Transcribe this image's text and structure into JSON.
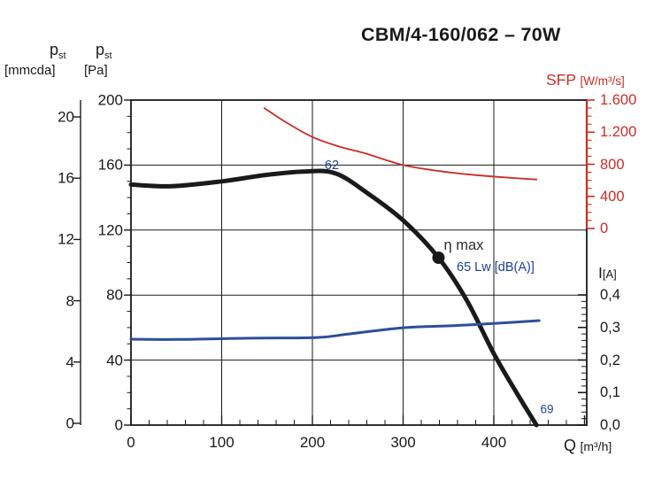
{
  "title": "CBM/4-160/062 – 70W",
  "colors": {
    "black": "#1a1a1a",
    "red": "#cc2c24",
    "blue_curve": "#2e4d9b",
    "blue_text": "#20409b"
  },
  "annotations": {
    "sound_mid": "62",
    "sound_legend": "65 Lw [dB(A)]",
    "sound_end": "69"
  },
  "chart_data": {
    "type": "line",
    "title": "CBM/4-160/062 – 70W",
    "grid": "on",
    "x_axis": {
      "name": "Q",
      "unit": "[m³/h]",
      "range": [
        0,
        500
      ],
      "major_step": 100,
      "minor_step": 20,
      "ticks": [
        {
          "v": 0,
          "label": "0"
        },
        {
          "v": 100,
          "label": "100"
        },
        {
          "v": 200,
          "label": "200"
        },
        {
          "v": 300,
          "label": "300"
        },
        {
          "v": 400,
          "label": "400"
        }
      ]
    },
    "y_axis_left_mmcda": {
      "symbol": "p",
      "sub": "st",
      "unit": "[mmcda]",
      "range": [
        0,
        20
      ],
      "ticks": [
        {
          "v": 20,
          "label": "20"
        },
        {
          "v": 16,
          "label": "16"
        },
        {
          "v": 12,
          "label": "12"
        },
        {
          "v": 8,
          "label": "8"
        },
        {
          "v": 4,
          "label": "4"
        },
        {
          "v": 0,
          "label": "0"
        }
      ]
    },
    "y_axis_left_pa": {
      "symbol": "p",
      "sub": "st",
      "unit": "[Pa]",
      "range": [
        0,
        200
      ],
      "minor_step": 10,
      "ticks": [
        {
          "v": 200,
          "label": "200"
        },
        {
          "v": 160,
          "label": "160"
        },
        {
          "v": 120,
          "label": "120"
        },
        {
          "v": 80,
          "label": "80"
        },
        {
          "v": 40,
          "label": "40"
        },
        {
          "v": 0,
          "label": "0"
        }
      ]
    },
    "y_axis_right_sfp": {
      "name": "SFP",
      "unit": "[W/m³/s]",
      "range": [
        0,
        1600
      ],
      "minor_step": 100,
      "ticks": [
        {
          "v": 1600,
          "label": "1.600"
        },
        {
          "v": 1200,
          "label": "1.200"
        },
        {
          "v": 800,
          "label": "800"
        },
        {
          "v": 400,
          "label": "400"
        },
        {
          "v": 0,
          "label": "0"
        }
      ]
    },
    "y_axis_right_current": {
      "name": "I",
      "unit": "[A]",
      "range": [
        0,
        0.4
      ],
      "minor_step": 0.02,
      "ticks": [
        {
          "v": 0.4,
          "label": "0,4"
        },
        {
          "v": 0.3,
          "label": "0,3"
        },
        {
          "v": 0.2,
          "label": "0,2"
        },
        {
          "v": 0.1,
          "label": "0,1"
        },
        {
          "v": 0,
          "label": "0,0"
        }
      ]
    },
    "series": [
      {
        "id": "pressure",
        "name": "Static pressure curve",
        "axis": "pa",
        "color": "#1a1a1a",
        "points": [
          [
            0,
            148
          ],
          [
            45,
            147
          ],
          [
            100,
            150
          ],
          [
            150,
            154
          ],
          [
            190,
            156
          ],
          [
            225,
            155
          ],
          [
            260,
            143
          ],
          [
            300,
            126
          ],
          [
            339,
            103
          ],
          [
            370,
            77
          ],
          [
            400,
            44
          ],
          [
            425,
            20
          ],
          [
            447,
            0
          ]
        ]
      },
      {
        "id": "sfp",
        "name": "Specific fan power",
        "axis": "sfp",
        "color": "#cc2c24",
        "points": [
          [
            147,
            1500
          ],
          [
            170,
            1330
          ],
          [
            200,
            1140
          ],
          [
            230,
            1020
          ],
          [
            260,
            930
          ],
          [
            300,
            790
          ],
          [
            340,
            715
          ],
          [
            380,
            665
          ],
          [
            420,
            630
          ],
          [
            447,
            610
          ]
        ]
      },
      {
        "id": "current",
        "name": "Motor current",
        "axis": "i",
        "color": "#2e4d9b",
        "points": [
          [
            0,
            0.264
          ],
          [
            50,
            0.263
          ],
          [
            130,
            0.267
          ],
          [
            205,
            0.269
          ],
          [
            240,
            0.28
          ],
          [
            300,
            0.299
          ],
          [
            360,
            0.306
          ],
          [
            410,
            0.314
          ],
          [
            450,
            0.321
          ]
        ]
      }
    ],
    "operating_point": {
      "q": 339,
      "pa": 103,
      "label": "η max"
    }
  }
}
